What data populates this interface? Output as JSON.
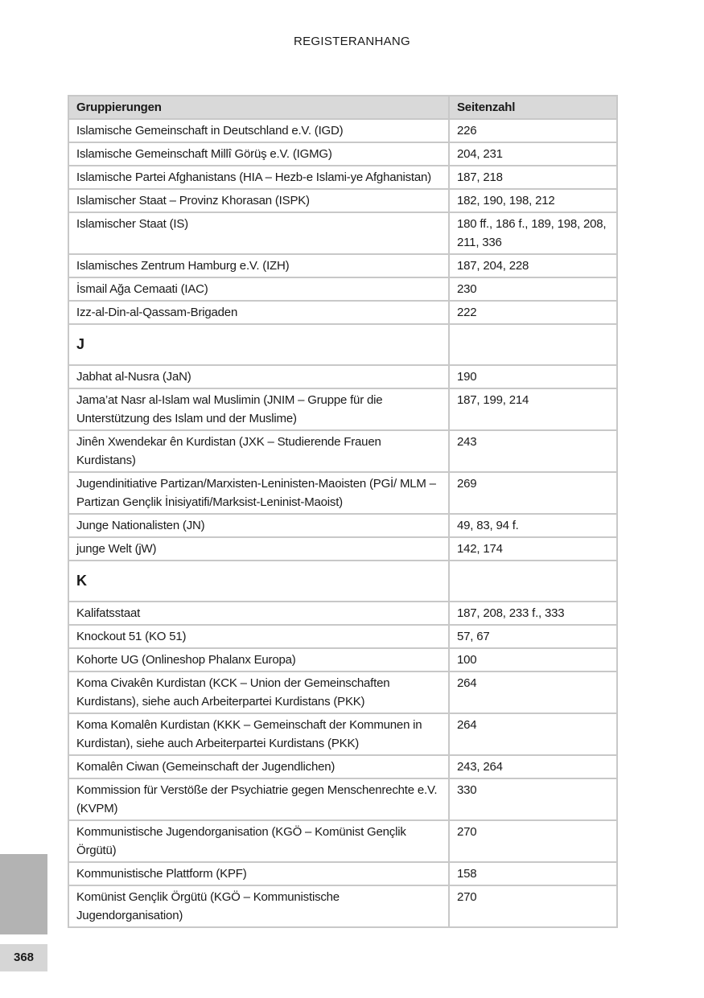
{
  "header": {
    "running_title": "REGISTERANHANG"
  },
  "table": {
    "columns": [
      "Gruppierungen",
      "Seitenzahl"
    ],
    "rows": [
      {
        "name": "Islamische Gemeinschaft in Deutschland e.V. (IGD)",
        "pages": "226"
      },
      {
        "name": "Islamische Gemeinschaft Millî Görüş e.V. (IGMG)",
        "pages": "204, 231"
      },
      {
        "name": "Islamische Partei Afghanistans (HIA – Hezb-e Islami-ye Afghanistan)",
        "pages": "187, 218"
      },
      {
        "name": "Islamischer Staat – Provinz Khorasan (ISPK)",
        "pages": "182, 190, 198, 212"
      },
      {
        "name": "Islamischer Staat (IS)",
        "pages": "180 ff., 186 f., 189, 198, 208, 211, 336"
      },
      {
        "name": "Islamisches Zentrum Hamburg e.V. (IZH)",
        "pages": "187, 204, 228"
      },
      {
        "name": "İsmail Ağa Cemaati (IAC)",
        "pages": "230"
      },
      {
        "name": "Izz-al-Din-al-Qassam-Brigaden",
        "pages": "222"
      },
      {
        "letter": "J"
      },
      {
        "name": "Jabhat al-Nusra (JaN)",
        "pages": "190"
      },
      {
        "name": "Jama’at Nasr al-Islam wal Muslimin (JNIM – Gruppe für die Unterstützung des Islam und der Muslime)",
        "pages": "187, 199, 214"
      },
      {
        "name": "Jinên Xwendekar ên Kurdistan (JXK – Studierende Frauen Kurdistans)",
        "pages": "243"
      },
      {
        "name": "Jugendinitiative Partizan/Marxisten-Leninisten-Maoisten (PGİ/ MLM – Partizan Gençlik İnisiyatifi/Marksist-Leninist-Maoist)",
        "pages": "269"
      },
      {
        "name": "Junge Nationalisten (JN)",
        "pages": "49, 83, 94 f."
      },
      {
        "name": "junge Welt (jW)",
        "pages": "142, 174"
      },
      {
        "letter": "K"
      },
      {
        "name": "Kalifatsstaat",
        "pages": "187, 208, 233 f., 333"
      },
      {
        "name": "Knockout 51 (KO 51)",
        "pages": "57, 67"
      },
      {
        "name": "Kohorte UG (Onlineshop Phalanx Europa)",
        "pages": "100"
      },
      {
        "name": "Koma Civakên Kurdistan (KCK – Union der Gemeinschaften Kurdistans), siehe auch Arbeiterpartei Kurdistans (PKK)",
        "pages": "264"
      },
      {
        "name": "Koma Komalên Kurdistan (KKK – Gemeinschaft der Kommunen in Kurdistan), siehe auch  Arbeiterpartei Kurdistans (PKK)",
        "pages": "264"
      },
      {
        "name": "Komalên Ciwan (Gemeinschaft der Jugendlichen)",
        "pages": "243, 264"
      },
      {
        "name": "Kommission für Verstöße der Psychiatrie gegen Menschenrechte e.V. (KVPM)",
        "pages": "330"
      },
      {
        "name": "Kommunistische Jugendorganisation (KGÖ – Komünist Gençlik Örgütü)",
        "pages": "270"
      },
      {
        "name": "Kommunistische Plattform (KPF)",
        "pages": "158"
      },
      {
        "name": "Komünist Gençlik Örgütü (KGÖ – Kommunistische Jugendorganisation)",
        "pages": "270"
      }
    ]
  },
  "footer": {
    "page_number": "368"
  }
}
